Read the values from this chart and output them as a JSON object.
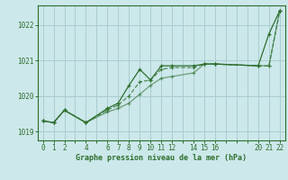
{
  "bg_color": "#cce8ea",
  "grid_color": "#aacdd0",
  "line_color": "#2d6e2d",
  "title": "Graphe pression niveau de la mer (hPa)",
  "xlim": [
    -0.5,
    22.5
  ],
  "ylim": [
    1018.75,
    1022.55
  ],
  "yticks": [
    1019,
    1020,
    1021,
    1022
  ],
  "xticks_all": [
    0,
    1,
    2,
    3,
    4,
    5,
    6,
    7,
    8,
    9,
    10,
    11,
    12,
    13,
    14,
    15,
    16,
    17,
    18,
    19,
    20,
    21,
    22
  ],
  "xtick_labels": [
    "0",
    "1",
    "2",
    "",
    "4",
    "",
    "6",
    "7",
    "8",
    "9",
    "10",
    "11",
    "12",
    "",
    "14",
    "15",
    "16",
    "",
    "",
    "",
    "20",
    "21",
    "22"
  ],
  "series": [
    {
      "x": [
        0,
        1,
        2,
        4,
        6,
        7,
        8,
        9,
        10,
        11,
        12,
        14,
        15,
        16,
        20,
        21,
        22
      ],
      "y": [
        1019.3,
        1019.25,
        1019.6,
        1019.25,
        1019.65,
        1019.8,
        1020.3,
        1020.75,
        1020.45,
        1020.85,
        1020.85,
        1020.85,
        1020.9,
        1020.9,
        1020.85,
        1021.75,
        1022.4
      ],
      "style": "solid",
      "marker": "+"
    },
    {
      "x": [
        0,
        1,
        2,
        4,
        6,
        7,
        8,
        9,
        10,
        11,
        12,
        14,
        15,
        16,
        20,
        21,
        22
      ],
      "y": [
        1019.3,
        1019.25,
        1019.6,
        1019.25,
        1019.6,
        1019.75,
        1020.0,
        1020.4,
        1020.45,
        1020.75,
        1020.8,
        1020.8,
        1020.9,
        1020.9,
        1020.85,
        1020.85,
        1022.4
      ],
      "style": "dashed",
      "marker": "+"
    },
    {
      "x": [
        0,
        1,
        2,
        4,
        6,
        7,
        8,
        9,
        10,
        11,
        12,
        14,
        15,
        16,
        20,
        21,
        22
      ],
      "y": [
        1019.3,
        1019.25,
        1019.6,
        1019.25,
        1019.55,
        1019.65,
        1019.8,
        1020.05,
        1020.3,
        1020.5,
        1020.55,
        1020.65,
        1020.9,
        1020.9,
        1020.85,
        1020.85,
        1022.4
      ],
      "style": "solid",
      "marker": "+"
    }
  ]
}
